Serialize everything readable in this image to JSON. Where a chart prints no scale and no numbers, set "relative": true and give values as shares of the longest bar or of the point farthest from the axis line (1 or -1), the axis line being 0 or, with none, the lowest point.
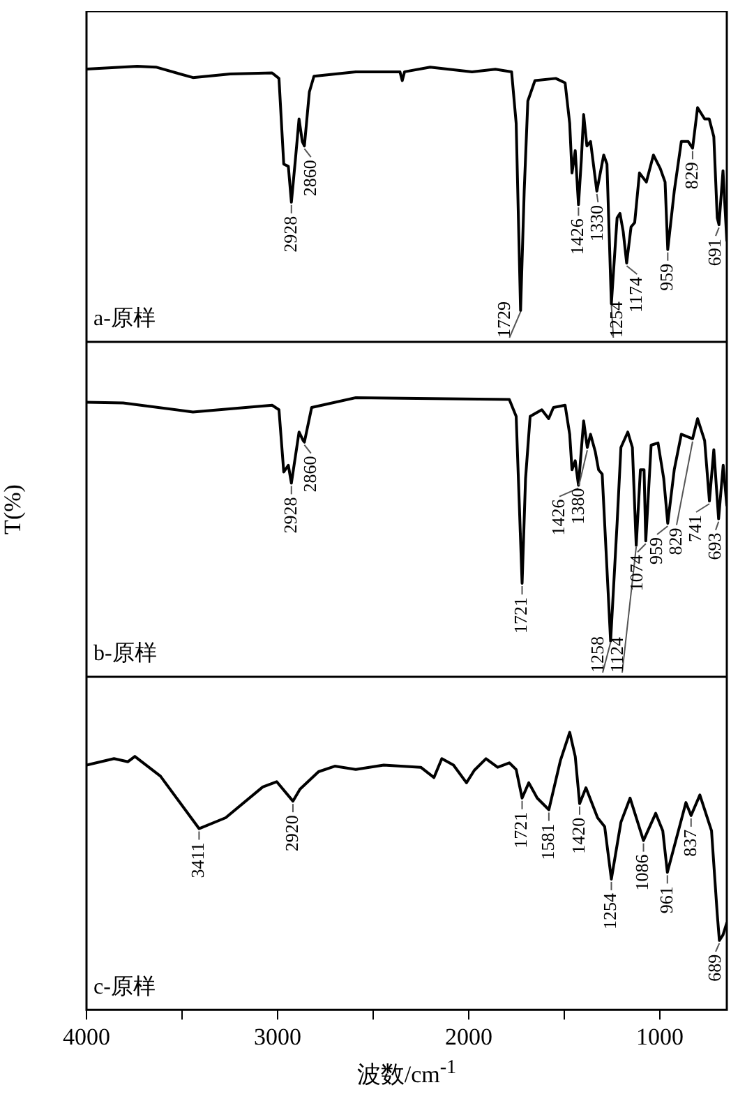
{
  "chart_data": [
    {
      "type": "line",
      "relative": true,
      "xlim": [
        4000,
        650
      ],
      "tick_labels": false,
      "x": [
        4000,
        3735,
        3637,
        3443,
        3248,
        3029,
        2993,
        2968,
        2944,
        2928,
        2907,
        2888,
        2871,
        2860,
        2834,
        2810,
        2591,
        2360,
        2348,
        2336,
        2202,
        1983,
        1861,
        1776,
        1752,
        1729,
        1710,
        1691,
        1654,
        1545,
        1496,
        1472,
        1460,
        1443,
        1426,
        1411,
        1399,
        1382,
        1363,
        1330,
        1294,
        1277,
        1254,
        1224,
        1209,
        1192,
        1174,
        1151,
        1132,
        1107,
        1071,
        1034,
        998,
        973,
        959,
        925,
        888,
        852,
        829,
        803,
        766,
        742,
        718,
        700,
        691,
        670,
        650
      ],
      "series": [
        {
          "color": "#000000",
          "values": [
            0.99,
            1.0,
            0.997,
            0.959,
            0.972,
            0.976,
            0.956,
            0.645,
            0.637,
            0.507,
            0.662,
            0.809,
            0.727,
            0.711,
            0.907,
            0.964,
            0.98,
            0.98,
            0.948,
            0.98,
            0.997,
            0.98,
            0.989,
            0.98,
            0.793,
            0.114,
            0.547,
            0.874,
            0.948,
            0.956,
            0.94,
            0.793,
            0.613,
            0.694,
            0.498,
            0.662,
            0.825,
            0.711,
            0.727,
            0.547,
            0.678,
            0.645,
            0.139,
            0.45,
            0.466,
            0.4,
            0.286,
            0.417,
            0.433,
            0.613,
            0.58,
            0.678,
            0.629,
            0.58,
            0.335,
            0.547,
            0.727,
            0.727,
            0.703,
            0.85,
            0.809,
            0.809,
            0.744,
            0.45,
            0.425,
            0.621,
            0.368
          ]
        }
      ],
      "annotations": [
        "a-原样",
        {
          "text": "2928",
          "x": 2928,
          "y": 0.507
        },
        {
          "text": "2860",
          "x": 2860,
          "y": 0.711
        },
        {
          "text": "1729",
          "x": 1729,
          "y": 0.114
        },
        {
          "text": "1426",
          "x": 1426,
          "y": 0.498
        },
        {
          "text": "1330",
          "x": 1330,
          "y": 0.547
        },
        {
          "text": "1254",
          "x": 1254,
          "y": 0.139
        },
        {
          "text": "1174",
          "x": 1174,
          "y": 0.286
        },
        {
          "text": "959",
          "x": 959,
          "y": 0.335
        },
        {
          "text": "829",
          "x": 829,
          "y": 0.703
        },
        {
          "text": "691",
          "x": 691,
          "y": 0.425
        }
      ]
    },
    {
      "type": "line",
      "relative": true,
      "xlim": [
        4000,
        650
      ],
      "tick_labels": false,
      "ylabel": "T(%)",
      "x": [
        4000,
        3808,
        3443,
        3029,
        2993,
        2968,
        2944,
        2928,
        2907,
        2888,
        2866,
        2860,
        2822,
        2591,
        1788,
        1752,
        1721,
        1703,
        1679,
        1618,
        1582,
        1557,
        1496,
        1472,
        1460,
        1443,
        1426,
        1399,
        1380,
        1363,
        1338,
        1321,
        1302,
        1258,
        1224,
        1204,
        1168,
        1144,
        1124,
        1102,
        1083,
        1074,
        1046,
        1010,
        980,
        959,
        925,
        888,
        829,
        803,
        766,
        741,
        718,
        693,
        669,
        650
      ],
      "series": [
        {
          "color": "#000000",
          "values": [
            0.984,
            0.981,
            0.949,
            0.973,
            0.957,
            0.734,
            0.758,
            0.694,
            0.79,
            0.877,
            0.846,
            0.841,
            0.965,
            1.0,
            0.994,
            0.933,
            0.335,
            0.71,
            0.933,
            0.957,
            0.925,
            0.965,
            0.973,
            0.869,
            0.742,
            0.774,
            0.686,
            0.917,
            0.822,
            0.869,
            0.806,
            0.742,
            0.726,
            0.128,
            0.55,
            0.822,
            0.877,
            0.822,
            0.471,
            0.742,
            0.742,
            0.487,
            0.83,
            0.838,
            0.71,
            0.55,
            0.742,
            0.869,
            0.853,
            0.925,
            0.846,
            0.63,
            0.814,
            0.566,
            0.758,
            0.614
          ]
        }
      ],
      "annotations": [
        "b-原样",
        {
          "text": "2928",
          "x": 2928,
          "y": 0.694
        },
        {
          "text": "2860",
          "x": 2860,
          "y": 0.841
        },
        {
          "text": "1721",
          "x": 1721,
          "y": 0.335
        },
        {
          "text": "1426",
          "x": 1426,
          "y": 0.686
        },
        {
          "text": "1380",
          "x": 1380,
          "y": 0.822
        },
        {
          "text": "1258",
          "x": 1258,
          "y": 0.128
        },
        {
          "text": "1124",
          "x": 1124,
          "y": 0.471
        },
        {
          "text": "1074",
          "x": 1074,
          "y": 0.487
        },
        {
          "text": "959",
          "x": 959,
          "y": 0.55
        },
        {
          "text": "829",
          "x": 829,
          "y": 0.853
        },
        {
          "text": "741",
          "x": 741,
          "y": 0.63
        },
        {
          "text": "693",
          "x": 693,
          "y": 0.566
        }
      ]
    },
    {
      "type": "line",
      "relative": true,
      "xlim": [
        4000,
        650
      ],
      "xticks": [
        4000,
        {
          "value": 3500,
          "label": null
        },
        3000,
        {
          "value": 2500,
          "label": null
        },
        2000,
        {
          "value": 1500,
          "label": null
        },
        1000
      ],
      "tick_labels": "x",
      "xlabel": "波数/cm$^{-1}$",
      "x": [
        4000,
        3856,
        3783,
        3747,
        3613,
        3411,
        3272,
        3078,
        3005,
        2920,
        2883,
        2786,
        2701,
        2591,
        2445,
        2251,
        2182,
        2141,
        2080,
        2012,
        1971,
        1910,
        1849,
        1788,
        1752,
        1721,
        1686,
        1642,
        1581,
        1521,
        1472,
        1443,
        1420,
        1387,
        1326,
        1289,
        1254,
        1204,
        1156,
        1086,
        1022,
        985,
        961,
        864,
        837,
        791,
        730,
        700,
        689,
        670,
        650
      ],
      "series": [
        {
          "color": "#000000",
          "values": [
            0.882,
            0.905,
            0.894,
            0.913,
            0.842,
            0.653,
            0.692,
            0.803,
            0.822,
            0.752,
            0.795,
            0.858,
            0.878,
            0.866,
            0.882,
            0.874,
            0.837,
            0.905,
            0.882,
            0.818,
            0.863,
            0.905,
            0.874,
            0.89,
            0.866,
            0.763,
            0.818,
            0.763,
            0.721,
            0.897,
            1.0,
            0.913,
            0.743,
            0.8,
            0.692,
            0.66,
            0.471,
            0.676,
            0.763,
            0.61,
            0.708,
            0.645,
            0.495,
            0.747,
            0.7,
            0.774,
            0.645,
            0.344,
            0.25,
            0.27,
            0.313
          ]
        }
      ],
      "annotations": [
        "c-原样",
        {
          "text": "3411",
          "x": 3411,
          "y": 0.653
        },
        {
          "text": "2920",
          "x": 2920,
          "y": 0.752
        },
        {
          "text": "1721",
          "x": 1721,
          "y": 0.763
        },
        {
          "text": "1581",
          "x": 1581,
          "y": 0.721
        },
        {
          "text": "1420",
          "x": 1420,
          "y": 0.743
        },
        {
          "text": "1254",
          "x": 1254,
          "y": 0.471
        },
        {
          "text": "1086",
          "x": 1086,
          "y": 0.61
        },
        {
          "text": "961",
          "x": 961,
          "y": 0.495
        },
        {
          "text": "837",
          "x": 837,
          "y": 0.7
        },
        {
          "text": "689",
          "x": 689,
          "y": 0.25
        }
      ]
    }
  ]
}
